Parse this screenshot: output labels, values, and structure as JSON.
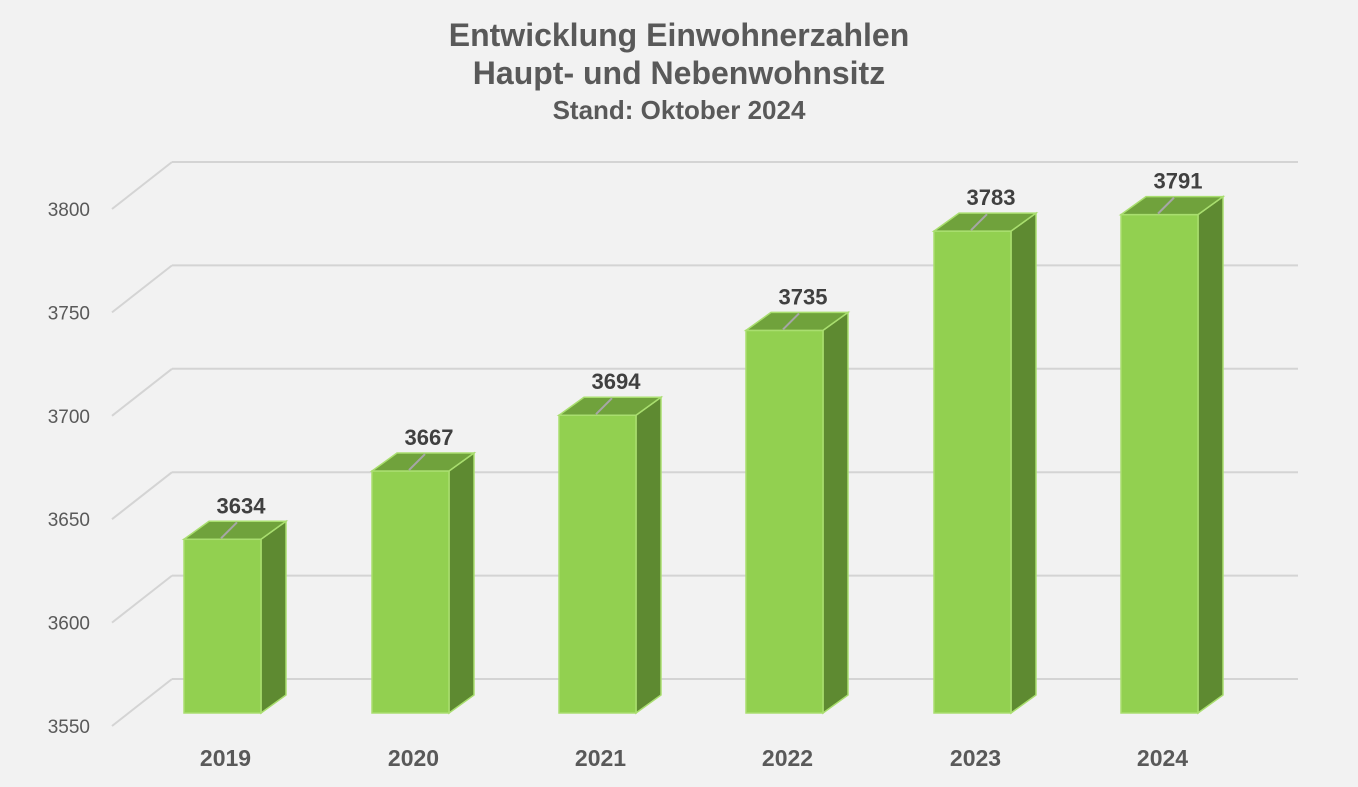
{
  "chart_data": {
    "type": "bar",
    "title": "Entwicklung Einwohnerzahlen",
    "subtitle": "Haupt- und Nebenwohnsitz",
    "subtitle2": "Stand: Oktober 2024",
    "categories": [
      "2019",
      "2020",
      "2021",
      "2022",
      "2023",
      "2024"
    ],
    "values": [
      3634,
      3667,
      3694,
      3735,
      3783,
      3791
    ],
    "yticks": [
      "3550",
      "3600",
      "3650",
      "3700",
      "3750",
      "3800"
    ],
    "ylim": [
      3550,
      3800
    ],
    "grid": true,
    "legend": "none",
    "colors": {
      "bar_front": "#92d050",
      "bar_side": "#5e8a31",
      "bar_top": "#70a23c",
      "bar_edge": "#a9de6f",
      "grid": "#d4d4d4"
    }
  }
}
